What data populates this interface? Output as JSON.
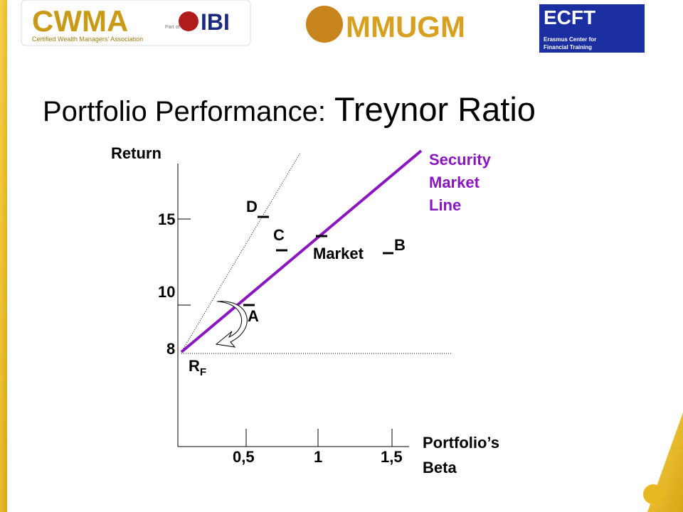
{
  "header": {
    "logos": {
      "cwma": "CWMA",
      "cwma_sub": "Certified Wealth Managers' Association",
      "part_of": "Part of",
      "ibi": "IBI",
      "mmugm": "MMUGM",
      "ecft": "ECFT",
      "ecft_sub1": "Erasmus Center for",
      "ecft_sub2": "Financial Training"
    }
  },
  "title": {
    "part1": "Portfolio Performance:",
    "part2": "Treynor Ratio"
  },
  "diagram": {
    "y_axis_label": "Return",
    "x_axis_label": [
      "Portfolio’s",
      "Beta"
    ],
    "y_ticks": [
      "15",
      "10",
      "8"
    ],
    "x_ticks": [
      "0,5",
      "1",
      "1,5"
    ],
    "line_label": [
      "Security",
      "Market",
      "Line"
    ],
    "points": {
      "d": "D",
      "c": "C",
      "market": "Market",
      "b": "B",
      "a": "A"
    },
    "rf": {
      "main": "R",
      "sub": "F"
    }
  }
}
